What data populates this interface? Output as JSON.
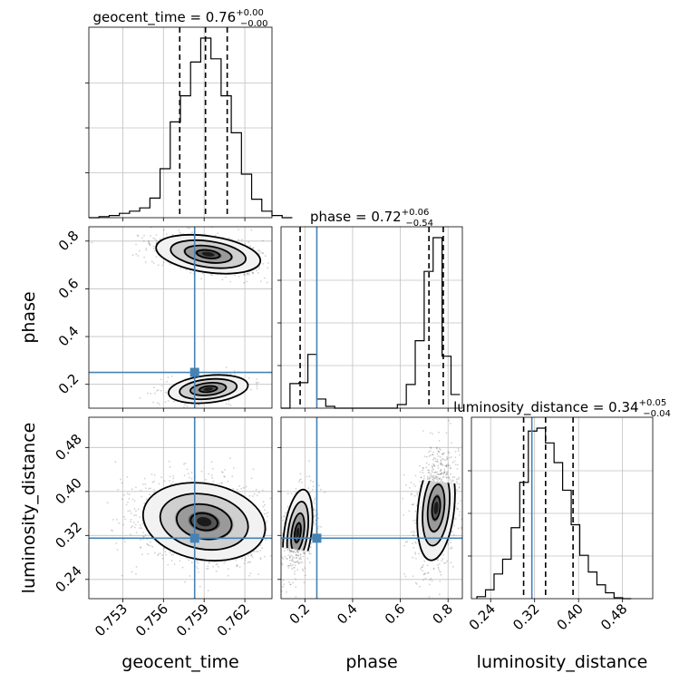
{
  "chart_data": {
    "type": "corner",
    "parameters": [
      "geocent_time",
      "phase",
      "luminosity_distance"
    ],
    "titles": {
      "geocent_time": {
        "prefix": "geocent_time = 0.76",
        "sup": "+0.00",
        "sub": "−0.00"
      },
      "phase": {
        "prefix": "phase = 0.72",
        "sup": "+0.06",
        "sub": "−0.54"
      },
      "luminosity_distance": {
        "prefix": "luminosity_distance = 0.34",
        "sup": "+0.05",
        "sub": "−0.04"
      }
    },
    "axis_labels": {
      "x": [
        "geocent_time",
        "phase",
        "luminosity_distance"
      ],
      "y": [
        "phase",
        "luminosity_distance"
      ]
    },
    "ranges": {
      "geocent_time": [
        0.7505,
        0.764
      ],
      "phase": [
        0.1,
        0.86
      ],
      "luminosity_distance": [
        0.205,
        0.535
      ]
    },
    "ticks": {
      "geocent_time": [
        "0.753",
        "0.756",
        "0.759",
        "0.762"
      ],
      "phase_x": [
        "0.2",
        "0.4",
        "0.6",
        "0.8"
      ],
      "phase_y": [
        "0.8",
        "0.6",
        "0.4",
        "0.2"
      ],
      "luminosity_distance": [
        "0.24",
        "0.32",
        "0.40",
        "0.48"
      ]
    },
    "truth": {
      "geocent_time": 0.7583,
      "phase": 0.25,
      "luminosity_distance": 0.315
    },
    "quantiles": {
      "geocent_time": [
        0.7572,
        0.7591,
        0.7607
      ],
      "phase": [
        0.18,
        0.72,
        0.78
      ],
      "luminosity_distance": [
        0.3,
        0.34,
        0.39
      ]
    },
    "hist_geocent_time": {
      "edges_start": 0.7505,
      "bin_width": 0.00075,
      "counts": [
        0,
        1,
        2,
        4,
        6,
        9,
        18,
        45,
        88,
        112,
        143,
        165,
        146,
        112,
        78,
        40,
        17,
        6,
        2,
        0
      ]
    },
    "hist_phase": {
      "edges_start": 0.1,
      "bin_width": 0.0375,
      "counts": [
        0,
        27,
        28,
        59,
        10,
        2,
        0,
        0,
        0,
        0,
        0,
        0,
        0,
        4,
        26,
        74,
        150,
        187,
        57,
        15
      ]
    },
    "hist_luminosity_distance": {
      "edges_start": 0.215,
      "bin_width": 0.0156,
      "counts": [
        2,
        9,
        25,
        40,
        72,
        118,
        170,
        173,
        158,
        138,
        110,
        75,
        44,
        27,
        14,
        6,
        1,
        0
      ]
    },
    "colors": {
      "truth": "#4682b4",
      "hist": "#000000",
      "grid": "#c0c0c0",
      "points": "#000000"
    }
  }
}
